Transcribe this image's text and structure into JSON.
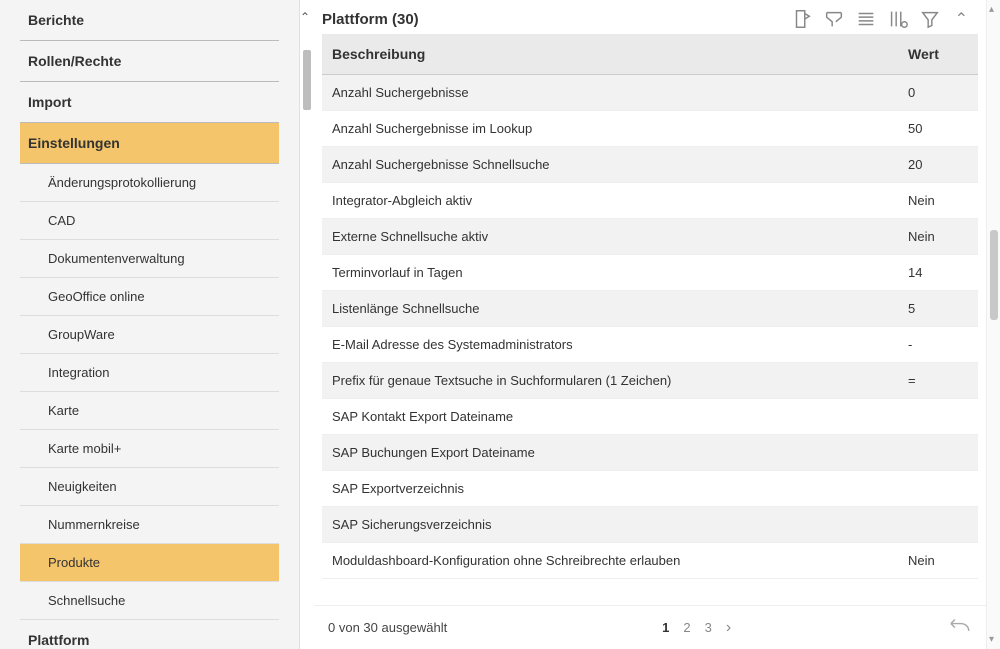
{
  "sidebar": {
    "items": [
      {
        "label": "Berichte",
        "kind": "top",
        "selected": false
      },
      {
        "label": "Rollen/Rechte",
        "kind": "top",
        "selected": false
      },
      {
        "label": "Import",
        "kind": "top",
        "selected": false
      },
      {
        "label": "Einstellungen",
        "kind": "top",
        "selected": true
      },
      {
        "label": "Änderungsprotokollierung",
        "kind": "sub",
        "selected": false
      },
      {
        "label": "CAD",
        "kind": "sub",
        "selected": false
      },
      {
        "label": "Dokumentenverwaltung",
        "kind": "sub",
        "selected": false
      },
      {
        "label": "GeoOffice online",
        "kind": "sub",
        "selected": false
      },
      {
        "label": "GroupWare",
        "kind": "sub",
        "selected": false
      },
      {
        "label": "Integration",
        "kind": "sub",
        "selected": false
      },
      {
        "label": "Karte",
        "kind": "sub",
        "selected": false
      },
      {
        "label": "Karte mobil+",
        "kind": "sub",
        "selected": false
      },
      {
        "label": "Neuigkeiten",
        "kind": "sub",
        "selected": false
      },
      {
        "label": "Nummernkreise",
        "kind": "sub",
        "selected": false
      },
      {
        "label": "Produkte",
        "kind": "sub",
        "selected": true
      },
      {
        "label": "Schnellsuche",
        "kind": "sub",
        "selected": false
      },
      {
        "label": "Plattform",
        "kind": "top",
        "selected": false
      }
    ]
  },
  "panel": {
    "title": "Plattform (30)",
    "columns": {
      "desc": "Beschreibung",
      "value": "Wert"
    },
    "rows": [
      {
        "desc": "Anzahl Suchergebnisse",
        "value": "0"
      },
      {
        "desc": "Anzahl Suchergebnisse im Lookup",
        "value": "50"
      },
      {
        "desc": "Anzahl Suchergebnisse Schnellsuche",
        "value": "20"
      },
      {
        "desc": "Integrator-Abgleich aktiv",
        "value": "Nein"
      },
      {
        "desc": "Externe Schnellsuche aktiv",
        "value": "Nein"
      },
      {
        "desc": "Terminvorlauf in Tagen",
        "value": "14"
      },
      {
        "desc": "Listenlänge Schnellsuche",
        "value": "5"
      },
      {
        "desc": "E-Mail Adresse des Systemadministrators",
        "value": "-"
      },
      {
        "desc": "Prefix für genaue Textsuche in Suchformularen (1 Zeichen)",
        "value": "="
      },
      {
        "desc": "SAP Kontakt Export Dateiname",
        "value": ""
      },
      {
        "desc": "SAP Buchungen Export Dateiname",
        "value": ""
      },
      {
        "desc": "SAP Exportverzeichnis",
        "value": ""
      },
      {
        "desc": "SAP Sicherungsverzeichnis",
        "value": ""
      },
      {
        "desc": "Moduldashboard-Konfiguration ohne Schreibrechte erlauben",
        "value": "Nein"
      }
    ]
  },
  "footer": {
    "status": "0 von 30 ausgewählt",
    "pages": [
      "1",
      "2",
      "3"
    ],
    "current_page": "1"
  },
  "colors": {
    "accent": "#f4c56a",
    "row_alt": "#f2f2f2",
    "header_bg": "#eaeaea",
    "border": "#dddddd",
    "icon": "#888888"
  }
}
